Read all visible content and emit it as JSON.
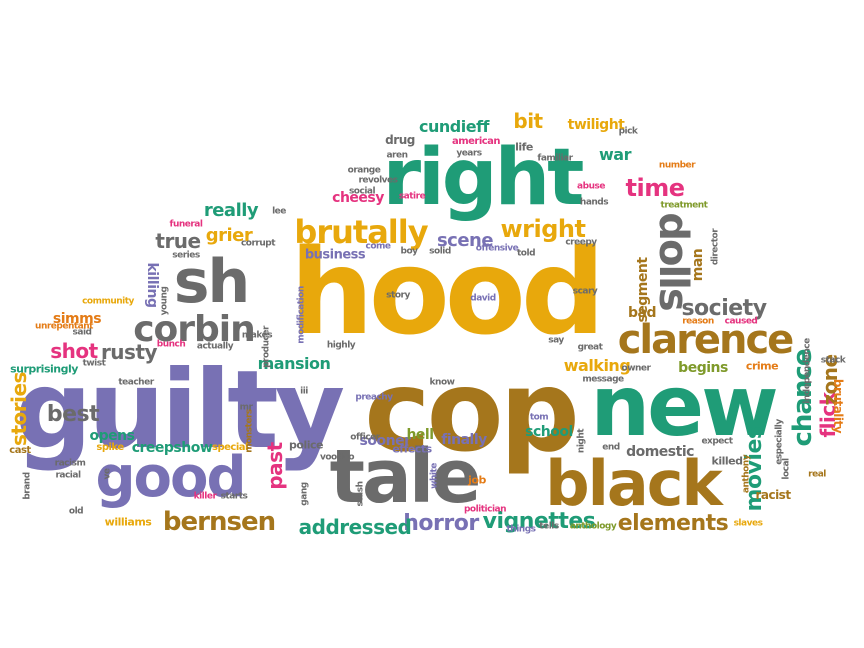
{
  "palette": {
    "gold": "#e8a80c",
    "brown": "#a5761c",
    "green": "#1f9c77",
    "purple": "#7871b4",
    "gray": "#6b6b6b",
    "pink": "#e5337f",
    "olive": "#7f9a2b",
    "orange": "#e47c17"
  },
  "words": [
    {
      "t": "hood",
      "c": "gold",
      "big": 1
    },
    {
      "t": "cop",
      "c": "brown",
      "big": 1
    },
    {
      "t": "guilty",
      "c": "purple",
      "big": 1
    },
    {
      "t": "new",
      "c": "green",
      "big": 1
    },
    {
      "t": "right",
      "c": "green",
      "big": 1
    },
    {
      "t": "tale",
      "c": "gray",
      "big": 1
    },
    {
      "t": "black",
      "c": "brown",
      "big": 1
    },
    {
      "t": "good",
      "c": "purple",
      "big": 1
    },
    {
      "t": "sh",
      "c": "gray",
      "big": 1
    },
    {
      "t": "clarence",
      "c": "brown",
      "big": 1
    },
    {
      "t": "dolls",
      "c": "gray",
      "big": 1,
      "r": 90
    },
    {
      "t": "brutally",
      "c": "gold",
      "big": 1
    },
    {
      "t": "corbin",
      "c": "gray",
      "big": 1
    },
    {
      "t": "bernsen",
      "c": "brown",
      "big": 1
    },
    {
      "t": "chance",
      "c": "green",
      "big": 1,
      "r": -90
    },
    {
      "t": "society",
      "c": "gray"
    },
    {
      "t": "time",
      "c": "pink"
    },
    {
      "t": "wright",
      "c": "gold"
    },
    {
      "t": "vignettes",
      "c": "green"
    },
    {
      "t": "elements",
      "c": "brown"
    },
    {
      "t": "horror",
      "c": "purple"
    },
    {
      "t": "addressed",
      "c": "green"
    },
    {
      "t": "past",
      "c": "pink",
      "r": -90
    },
    {
      "t": "movies",
      "c": "green",
      "r": -90
    },
    {
      "t": "flick",
      "c": "pink",
      "r": -90
    },
    {
      "t": "zone",
      "c": "brown",
      "r": -90
    },
    {
      "t": "stories",
      "c": "gold",
      "r": -90
    },
    {
      "t": "shot",
      "c": "pink"
    },
    {
      "t": "rusty",
      "c": "gray"
    },
    {
      "t": "best",
      "c": "gray"
    },
    {
      "t": "true",
      "c": "gray"
    },
    {
      "t": "grier",
      "c": "gold"
    },
    {
      "t": "really",
      "c": "green"
    },
    {
      "t": "scene",
      "c": "purple"
    },
    {
      "t": "bit",
      "c": "gold"
    },
    {
      "t": "cundieff",
      "c": "green"
    },
    {
      "t": "war",
      "c": "green"
    },
    {
      "t": "twilight",
      "c": "gold"
    },
    {
      "t": "mansion",
      "c": "green"
    },
    {
      "t": "walking",
      "c": "gold"
    },
    {
      "t": "begins",
      "c": "olive"
    },
    {
      "t": "segment",
      "c": "brown",
      "r": -90
    },
    {
      "t": "man",
      "c": "brown",
      "r": -90
    },
    {
      "t": "killing",
      "c": "purple",
      "r": 90
    },
    {
      "t": "simms",
      "c": "orange"
    },
    {
      "t": "creepshow",
      "c": "green"
    },
    {
      "t": "school",
      "c": "green"
    },
    {
      "t": "finally",
      "c": "purple"
    },
    {
      "t": "domestic",
      "c": "gray"
    },
    {
      "t": "sooner",
      "c": "purple"
    },
    {
      "t": "opens",
      "c": "green"
    },
    {
      "t": "hell",
      "c": "olive"
    },
    {
      "t": "bad",
      "c": "brown"
    },
    {
      "t": "cheesy",
      "c": "pink"
    },
    {
      "t": "drug",
      "c": "gray"
    },
    {
      "t": "business",
      "c": "purple"
    },
    {
      "t": "brutality",
      "c": "orange",
      "r": 90
    },
    {
      "t": "racist",
      "c": "brown"
    },
    {
      "t": "crime",
      "c": "orange"
    },
    {
      "t": "killed",
      "c": "gray"
    },
    {
      "t": "police",
      "c": "gray"
    },
    {
      "t": "job",
      "c": "orange"
    },
    {
      "t": "surprisingly",
      "c": "green"
    },
    {
      "t": "cast",
      "c": "brown"
    },
    {
      "t": "williams",
      "c": "gold"
    },
    {
      "t": "effects",
      "c": "purple"
    },
    {
      "t": "spike",
      "c": "gold"
    },
    {
      "t": "special",
      "c": "gold"
    },
    {
      "t": "life",
      "c": "gray"
    },
    {
      "t": "american",
      "c": "pink"
    },
    {
      "t": "funeral",
      "c": "pink"
    },
    {
      "t": "series",
      "c": "gray"
    },
    {
      "t": "corrupt",
      "c": "gray"
    },
    {
      "t": "twist",
      "c": "gray"
    },
    {
      "t": "lee",
      "c": "gray"
    },
    {
      "t": "said",
      "c": "gray"
    },
    {
      "t": "unrepentant",
      "c": "orange"
    },
    {
      "t": "community",
      "c": "gold"
    },
    {
      "t": "bunch",
      "c": "pink"
    },
    {
      "t": "actually",
      "c": "gray"
    },
    {
      "t": "producer",
      "c": "gray",
      "r": -90
    },
    {
      "t": "modification",
      "c": "purple",
      "r": -90
    },
    {
      "t": "teacher",
      "c": "gray"
    },
    {
      "t": "racism",
      "c": "gray"
    },
    {
      "t": "racial",
      "c": "gray"
    },
    {
      "t": "old",
      "c": "gray"
    },
    {
      "t": "killer",
      "c": "pink"
    },
    {
      "t": "starts",
      "c": "gray"
    },
    {
      "t": "monsters",
      "c": "brown",
      "r": -90
    },
    {
      "t": "officer",
      "c": "gray"
    },
    {
      "t": "voodoo",
      "c": "gray"
    },
    {
      "t": "preachy",
      "c": "purple"
    },
    {
      "t": "know",
      "c": "gray"
    },
    {
      "t": "tom",
      "c": "purple"
    },
    {
      "t": "great",
      "c": "gray"
    },
    {
      "t": "say",
      "c": "gray"
    },
    {
      "t": "message",
      "c": "gray"
    },
    {
      "t": "scary",
      "c": "gray"
    },
    {
      "t": "david",
      "c": "purple"
    },
    {
      "t": "story",
      "c": "gray"
    },
    {
      "t": "boy",
      "c": "gray"
    },
    {
      "t": "come",
      "c": "purple"
    },
    {
      "t": "solid",
      "c": "gray"
    },
    {
      "t": "offensive",
      "c": "purple"
    },
    {
      "t": "told",
      "c": "gray"
    },
    {
      "t": "creepy",
      "c": "gray"
    },
    {
      "t": "abuse",
      "c": "pink"
    },
    {
      "t": "hands",
      "c": "gray"
    },
    {
      "t": "treatment",
      "c": "olive"
    },
    {
      "t": "number",
      "c": "orange"
    },
    {
      "t": "director",
      "c": "gray",
      "r": -90
    },
    {
      "t": "reason",
      "c": "orange"
    },
    {
      "t": "caused",
      "c": "pink"
    },
    {
      "t": "stack",
      "c": "gray"
    },
    {
      "t": "real",
      "c": "brown"
    },
    {
      "t": "slaves",
      "c": "gold"
    },
    {
      "t": "expect",
      "c": "gray"
    },
    {
      "t": "end",
      "c": "gray"
    },
    {
      "t": "anthony",
      "c": "brown",
      "r": -90
    },
    {
      "t": "especially",
      "c": "gray",
      "r": -90
    },
    {
      "t": "local",
      "c": "gray",
      "r": -90
    },
    {
      "t": "independence",
      "c": "gray",
      "r": -90
    },
    {
      "t": "anthology",
      "c": "olive"
    },
    {
      "t": "tells",
      "c": "gray"
    },
    {
      "t": "things",
      "c": "purple"
    },
    {
      "t": "politician",
      "c": "pink"
    },
    {
      "t": "night",
      "c": "gray",
      "r": -90
    },
    {
      "t": "white",
      "c": "purple",
      "r": -90
    },
    {
      "t": "stash",
      "c": "gray",
      "r": -90
    },
    {
      "t": "gang",
      "c": "gray",
      "r": -90
    },
    {
      "t": "revolves",
      "c": "gray"
    },
    {
      "t": "orange",
      "c": "gray"
    },
    {
      "t": "social",
      "c": "gray"
    },
    {
      "t": "satire",
      "c": "pink"
    },
    {
      "t": "aren",
      "c": "gray"
    },
    {
      "t": "years",
      "c": "gray"
    },
    {
      "t": "familiar",
      "c": "gray"
    },
    {
      "t": "pick",
      "c": "gray"
    },
    {
      "t": "owner",
      "c": "gray"
    },
    {
      "t": "highly",
      "c": "gray"
    },
    {
      "t": "makes",
      "c": "gray"
    },
    {
      "t": "young",
      "c": "gray",
      "r": -90
    },
    {
      "t": "brand",
      "c": "gray",
      "r": -90
    },
    {
      "t": "ve",
      "c": "gray",
      "r": -90
    },
    {
      "t": "mr",
      "c": "gray"
    },
    {
      "t": "iii",
      "c": "gray"
    }
  ]
}
